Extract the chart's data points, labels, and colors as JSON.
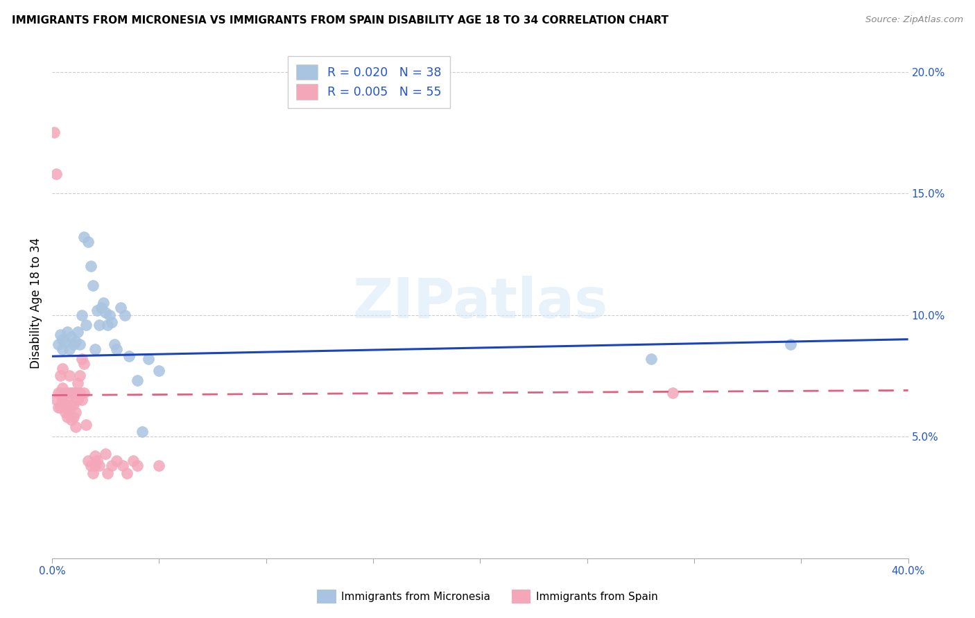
{
  "title": "IMMIGRANTS FROM MICRONESIA VS IMMIGRANTS FROM SPAIN DISABILITY AGE 18 TO 34 CORRELATION CHART",
  "source": "Source: ZipAtlas.com",
  "ylabel": "Disability Age 18 to 34",
  "xlim": [
    0.0,
    0.4
  ],
  "ylim": [
    0.0,
    0.21
  ],
  "xticks": [
    0.0,
    0.05,
    0.1,
    0.15,
    0.2,
    0.25,
    0.3,
    0.35,
    0.4
  ],
  "xticklabels": [
    "0.0%",
    "",
    "",
    "",
    "",
    "",
    "",
    "",
    "40.0%"
  ],
  "yticks_right": [
    0.05,
    0.1,
    0.15,
    0.2
  ],
  "yticklabels_right": [
    "5.0%",
    "10.0%",
    "15.0%",
    "20.0%"
  ],
  "micronesia_color": "#a8c4e0",
  "spain_color": "#f4a7b9",
  "micronesia_line_color": "#1a44bb",
  "spain_line_color": "#e06080",
  "R_micronesia": 0.02,
  "N_micronesia": 38,
  "R_spain": 0.005,
  "N_spain": 55,
  "legend_label_micronesia": "Immigrants from Micronesia",
  "legend_label_spain": "Immigrants from Spain",
  "watermark": "ZIPatlas",
  "micronesia_x": [
    0.003,
    0.004,
    0.005,
    0.005,
    0.006,
    0.007,
    0.008,
    0.009,
    0.01,
    0.011,
    0.012,
    0.013,
    0.014,
    0.015,
    0.016,
    0.017,
    0.018,
    0.019,
    0.02,
    0.021,
    0.022,
    0.023,
    0.024,
    0.025,
    0.026,
    0.027,
    0.028,
    0.029,
    0.03,
    0.032,
    0.034,
    0.036,
    0.04,
    0.042,
    0.045,
    0.05,
    0.28,
    0.345
  ],
  "micronesia_y": [
    0.088,
    0.092,
    0.09,
    0.086,
    0.089,
    0.093,
    0.086,
    0.091,
    0.088,
    0.089,
    0.093,
    0.088,
    0.1,
    0.132,
    0.096,
    0.13,
    0.12,
    0.112,
    0.086,
    0.102,
    0.096,
    0.103,
    0.105,
    0.101,
    0.096,
    0.1,
    0.097,
    0.088,
    0.086,
    0.103,
    0.1,
    0.083,
    0.073,
    0.052,
    0.082,
    0.077,
    0.082,
    0.088
  ],
  "spain_x": [
    0.001,
    0.002,
    0.002,
    0.003,
    0.003,
    0.004,
    0.004,
    0.004,
    0.005,
    0.005,
    0.005,
    0.006,
    0.006,
    0.006,
    0.007,
    0.007,
    0.007,
    0.008,
    0.008,
    0.008,
    0.009,
    0.009,
    0.009,
    0.01,
    0.01,
    0.01,
    0.011,
    0.011,
    0.011,
    0.012,
    0.012,
    0.013,
    0.013,
    0.014,
    0.014,
    0.015,
    0.015,
    0.016,
    0.017,
    0.018,
    0.019,
    0.02,
    0.02,
    0.021,
    0.022,
    0.025,
    0.026,
    0.028,
    0.03,
    0.033,
    0.035,
    0.038,
    0.04,
    0.29,
    0.05
  ],
  "spain_y": [
    0.175,
    0.158,
    0.065,
    0.068,
    0.062,
    0.075,
    0.068,
    0.062,
    0.078,
    0.07,
    0.065,
    0.068,
    0.063,
    0.06,
    0.065,
    0.062,
    0.058,
    0.075,
    0.068,
    0.06,
    0.068,
    0.063,
    0.057,
    0.068,
    0.063,
    0.058,
    0.068,
    0.06,
    0.054,
    0.072,
    0.065,
    0.075,
    0.068,
    0.082,
    0.065,
    0.08,
    0.068,
    0.055,
    0.04,
    0.038,
    0.035,
    0.042,
    0.038,
    0.04,
    0.038,
    0.043,
    0.035,
    0.038,
    0.04,
    0.038,
    0.035,
    0.04,
    0.038,
    0.068,
    0.038
  ]
}
